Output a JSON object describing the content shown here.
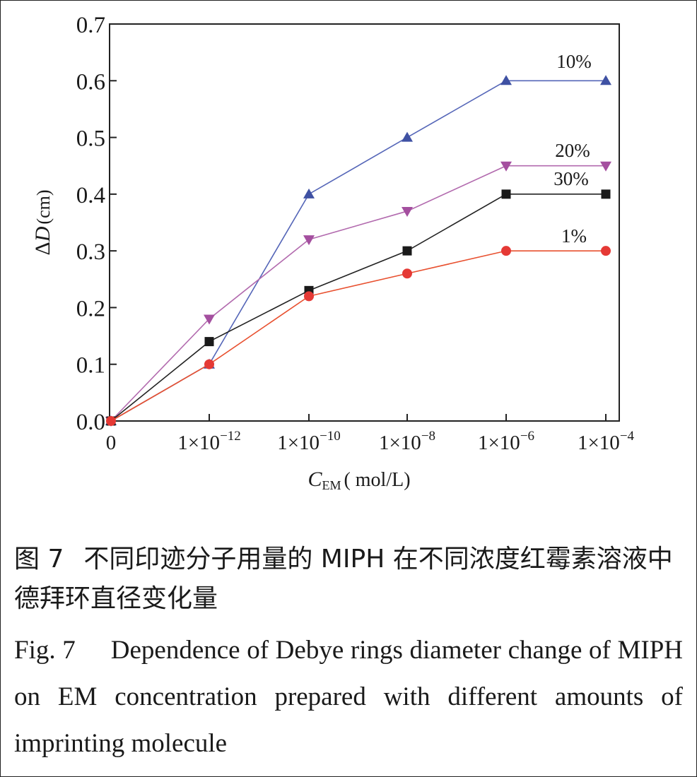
{
  "chart_data": {
    "type": "line",
    "x_ticks": [
      "0",
      "1×10",
      "1×10",
      "1×10",
      "1×10",
      "1×10"
    ],
    "x_tick_exponents": [
      "",
      "−12",
      "−10",
      "−8",
      "−6",
      "−4"
    ],
    "x": [
      "0",
      "1×10^-12",
      "1×10^-10",
      "1×10^-8",
      "1×10^-6",
      "1×10^-4"
    ],
    "xlabel_main": "C",
    "xlabel_sub": "EM",
    "xlabel_unit": "( mol/L)",
    "ylabel_delta": "Δ",
    "ylabel_var": "D",
    "ylabel_unit": "(cm)",
    "ylim": [
      0,
      0.7
    ],
    "y_ticks": [
      "0.0",
      "0.1",
      "0.2",
      "0.3",
      "0.4",
      "0.5",
      "0.6",
      "0.7"
    ],
    "grid": false,
    "series": [
      {
        "name": "10%",
        "color": "#3f51a3",
        "line_color": "#5566b8",
        "marker": "triangle-up",
        "values": [
          0.0,
          0.1,
          0.4,
          0.5,
          0.6,
          0.6
        ]
      },
      {
        "name": "20%",
        "color": "#a44f9f",
        "line_color": "#b26aae",
        "marker": "triangle-down",
        "values": [
          0.0,
          0.18,
          0.32,
          0.37,
          0.45,
          0.45
        ]
      },
      {
        "name": "30%",
        "color": "#1a1a1a",
        "line_color": "#222222",
        "marker": "square",
        "values": [
          0.0,
          0.14,
          0.23,
          0.3,
          0.4,
          0.4
        ]
      },
      {
        "name": "1%",
        "color": "#e53935",
        "line_color": "#e8502f",
        "marker": "circle",
        "values": [
          0.0,
          0.1,
          0.22,
          0.26,
          0.3,
          0.3
        ]
      }
    ]
  },
  "caption": {
    "zh_label": "图 7",
    "zh_text": "不同印迹分子用量的 MIPH 在不同浓度红霉素溶液中德拜环直径变化量",
    "en_label": "Fig. 7",
    "en_text": "Dependence of Debye rings diameter change of MIPH on EM concentration prepared with different amounts of imprinting molecule"
  }
}
